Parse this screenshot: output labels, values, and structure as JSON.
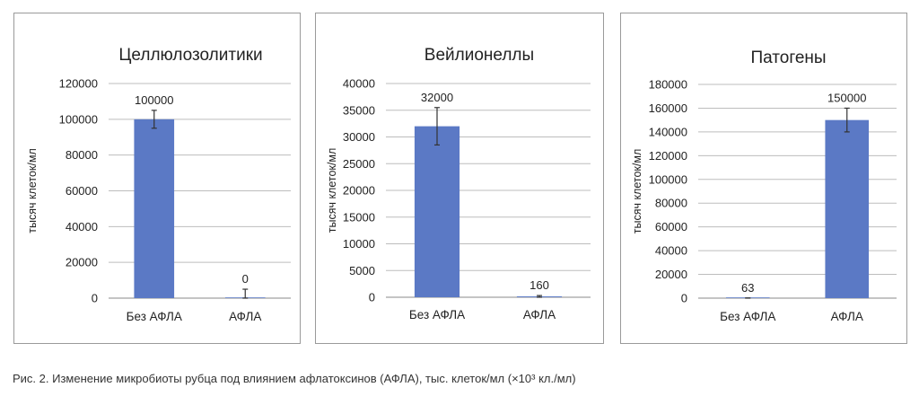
{
  "chart_data": [
    {
      "type": "bar",
      "title": "Целлюлозолитики",
      "ylabel": "тысяч клеток/мл",
      "categories": [
        "Без АФЛА",
        "АФЛА"
      ],
      "values": [
        100000,
        0
      ],
      "data_labels": [
        "100000",
        "0"
      ],
      "error": [
        5000,
        5000
      ],
      "ylim": [
        0,
        120000
      ],
      "yticks": [
        "0",
        "20000",
        "40000",
        "60000",
        "80000",
        "100000",
        "120000"
      ],
      "grid": true,
      "bar_color": "#5b79c5"
    },
    {
      "type": "bar",
      "title": "Вейлионеллы",
      "ylabel": "тысяч клеток/мл",
      "categories": [
        "Без АФЛА",
        "АФЛА"
      ],
      "values": [
        32000,
        160
      ],
      "data_labels": [
        "32000",
        "160"
      ],
      "error": [
        3500,
        160
      ],
      "ylim": [
        0,
        40000
      ],
      "yticks": [
        "0",
        "5000",
        "10000",
        "15000",
        "20000",
        "25000",
        "30000",
        "35000",
        "40000"
      ],
      "grid": true,
      "bar_color": "#5b79c5"
    },
    {
      "type": "bar",
      "title": "Патогены",
      "ylabel": "тысяч клеток/мл",
      "categories": [
        "Без АФЛА",
        "АФЛА"
      ],
      "values": [
        63,
        150000
      ],
      "data_labels": [
        "63",
        "150000"
      ],
      "error": [
        63,
        10000
      ],
      "ylim": [
        0,
        180000
      ],
      "yticks": [
        "0",
        "20000",
        "40000",
        "60000",
        "80000",
        "100000",
        "120000",
        "140000",
        "160000",
        "180000"
      ],
      "grid": true,
      "bar_color": "#5b79c5"
    }
  ],
  "caption": "Рис. 2. Изменение микробиоты рубца под влиянием афлатоксинов (АФЛА), тыс. клеток/мл (×10³ кл./мл)"
}
